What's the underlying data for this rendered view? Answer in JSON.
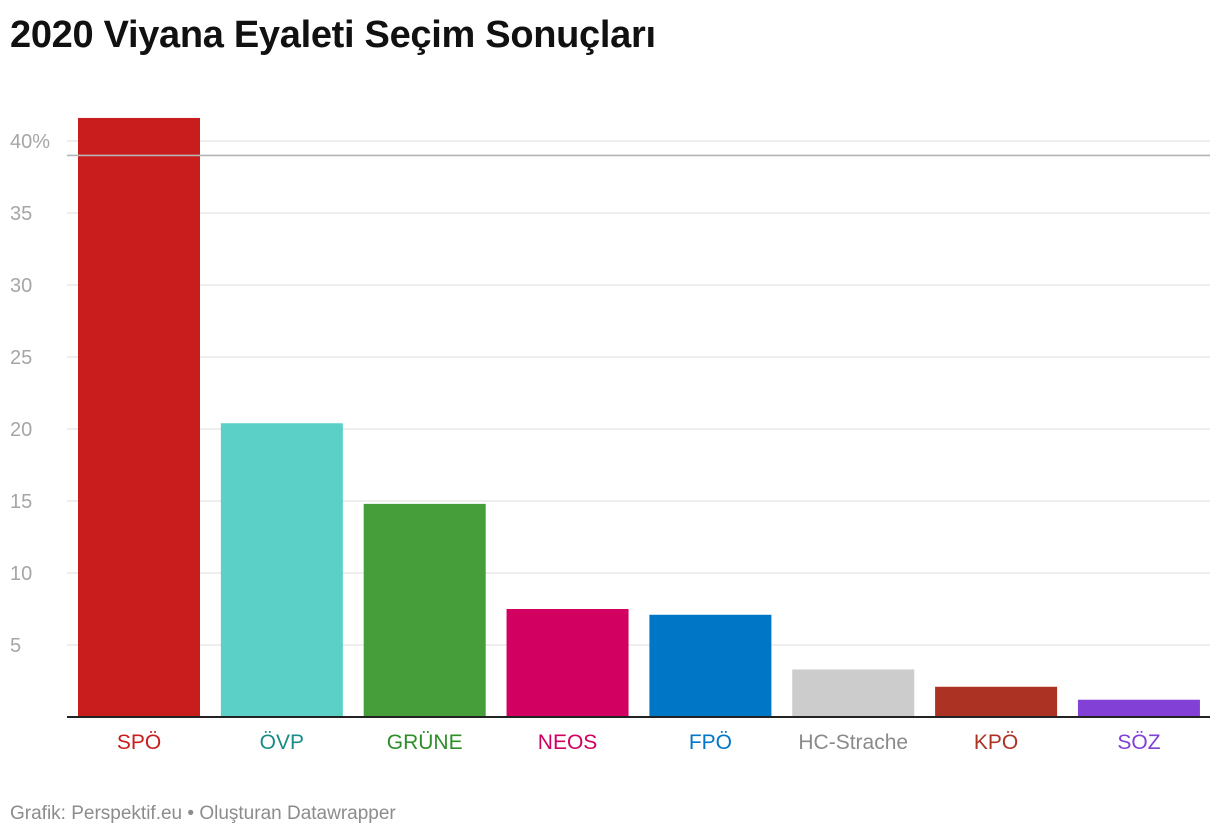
{
  "header": {
    "title": "2020 Viyana Eyaleti Seçim Sonuçları"
  },
  "footer": {
    "source_text": "Grafik: Perspektif.eu • Oluşturan Datawrapper"
  },
  "chart_data": {
    "type": "bar",
    "title": "2020 Viyana Eyaleti Seçim Sonuçları",
    "xlabel": "",
    "ylabel": "",
    "ylim": [
      0,
      40
    ],
    "y_ticks": [
      5,
      10,
      15,
      20,
      25,
      30,
      35,
      40
    ],
    "y_tick_labels": [
      "5",
      "10",
      "15",
      "20",
      "25",
      "30",
      "35",
      "40%"
    ],
    "grid": true,
    "reference_line": 39,
    "categories": [
      "SPÖ",
      "ÖVP",
      "GRÜNE",
      "NEOS",
      "FPÖ",
      "HC-Strache",
      "KPÖ",
      "SÖZ"
    ],
    "values": [
      41.6,
      20.4,
      14.8,
      7.5,
      7.1,
      3.3,
      2.1,
      1.2
    ],
    "colors": [
      "#c91d1d",
      "#5bd0c6",
      "#459e3a",
      "#d20060",
      "#0076c6",
      "#cccccc",
      "#ac3224",
      "#8240d6"
    ],
    "label_colors": [
      "#c91d1d",
      "#1a8c85",
      "#2f8e2a",
      "#d20060",
      "#0076c6",
      "#8a8a8a",
      "#ac3224",
      "#8240d6"
    ]
  }
}
